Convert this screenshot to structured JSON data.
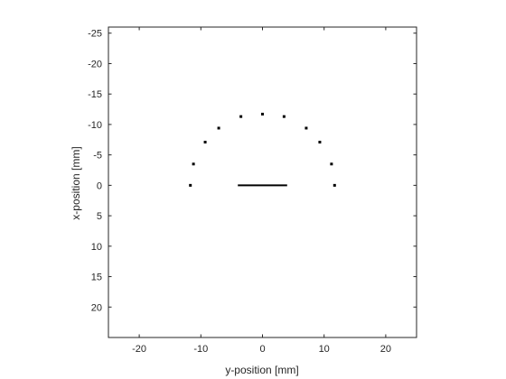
{
  "chart_data": {
    "type": "scatter",
    "xlabel": "y-position [mm]",
    "ylabel": "x-position [mm]",
    "xlim": [
      -25,
      25
    ],
    "ylim": [
      -26,
      25
    ],
    "y_axis_reversed": true,
    "x_ticks": [
      -20,
      -10,
      0,
      10,
      20
    ],
    "y_ticks": [
      -25,
      -20,
      -15,
      -10,
      -5,
      0,
      5,
      10,
      15,
      20
    ],
    "grid": false,
    "box": true,
    "marker_color": "#000000",
    "points": [
      {
        "x": -11.7,
        "y": 0.0
      },
      {
        "x": -11.2,
        "y": -3.5
      },
      {
        "x": -9.3,
        "y": -7.1
      },
      {
        "x": -7.1,
        "y": -9.4
      },
      {
        "x": -3.5,
        "y": -11.3
      },
      {
        "x": 0.0,
        "y": -11.7
      },
      {
        "x": 3.5,
        "y": -11.3
      },
      {
        "x": 7.1,
        "y": -9.4
      },
      {
        "x": 9.3,
        "y": -7.1
      },
      {
        "x": 11.2,
        "y": -3.5
      },
      {
        "x": 11.7,
        "y": 0.0
      }
    ],
    "segments": [
      {
        "x": [
          -4.0,
          4.0
        ],
        "y": [
          0.0,
          0.0
        ]
      }
    ]
  }
}
